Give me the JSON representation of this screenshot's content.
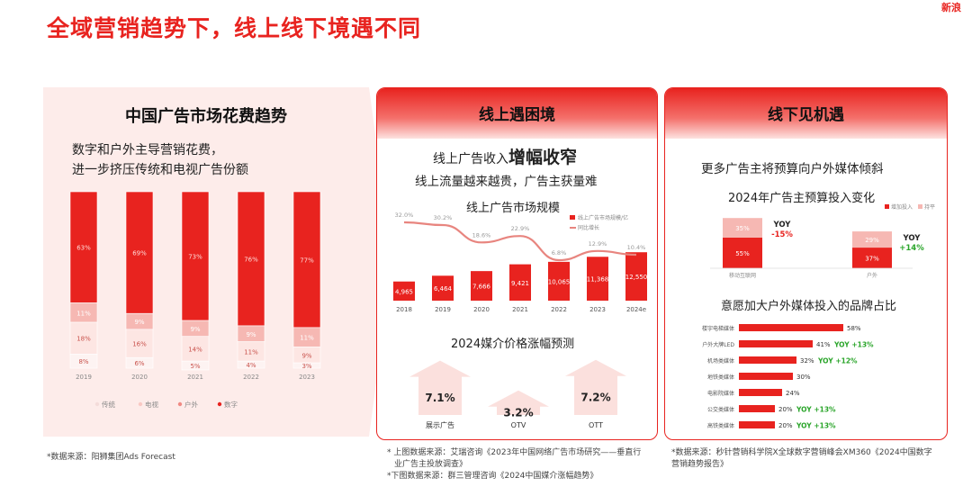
{
  "title": "全域营销趋势下，线上线下境遇不同",
  "brand": "新浪",
  "colors": {
    "red": "#e8231f",
    "pink_light": "#fdecea",
    "pink": "#f6b8b3",
    "pink_mid": "#f9c9c4"
  },
  "left": {
    "title": "中国广告市场花费趋势",
    "subtitle_line1": "数字和户外主导营销花费，",
    "subtitle_line2": "进一步挤压传统和电视广告份额",
    "source": "*数据来源：阳狮集团Ads Forecast"
  },
  "mid": {
    "header": "线上遇困境",
    "headline_prefix": "线上广告收入",
    "headline_emph": "增幅收窄",
    "subline": "线上流量越来越贵，广告主获量难",
    "chart_title": "线上广告市场规模",
    "forecast_title": "2024媒介价格涨幅预测",
    "source_line1": "* 上图数据来源：艾瑞咨询《2023年中国网络广告市场研究——垂直行",
    "source_line2": "业广告主投放调查》",
    "source_line3": "*下图数据来源：群三管理咨询《2024中国媒介涨幅趋势》"
  },
  "right": {
    "header": "线下见机遇",
    "headline": "更多广告主将预算向户外媒体倾斜",
    "budget_title": "2024年广告主预算投入变化",
    "brand_title": "意愿加大户外媒体投入的品牌占比",
    "source_line1": "*数据来源：秒针营销科学院X全球数字营销峰会XM360《2024中国数字",
    "source_line2": "营销趋势报告》"
  },
  "chart_data": [
    {
      "type": "bar",
      "stacked": true,
      "categories": [
        "2019",
        "2020",
        "2021",
        "2022",
        "2023"
      ],
      "series": [
        {
          "name": "数字",
          "values": [
            63,
            69,
            73,
            76,
            77
          ],
          "color": "#e8231f"
        },
        {
          "name": "户外",
          "values": [
            11,
            9,
            9,
            9,
            11
          ],
          "color": "#f6b8b3"
        },
        {
          "name": "电视",
          "values": [
            18,
            16,
            14,
            11,
            9
          ],
          "color": "#fde6e3"
        },
        {
          "name": "传统",
          "values": [
            8,
            6,
            5,
            4,
            3
          ],
          "color": "#fdf3f2"
        }
      ],
      "legend_labels": [
        "传统",
        "电视",
        "户外",
        "数字"
      ],
      "legend_position": "bottom",
      "ylim": [
        0,
        100
      ]
    },
    {
      "type": "bar",
      "title": "线上广告市场规模",
      "categories": [
        "2018",
        "2019",
        "2020",
        "2021",
        "2022",
        "2023",
        "2024e"
      ],
      "series": [
        {
          "name": "线上广告市场规模/亿",
          "values": [
            4965,
            6464,
            7666,
            9421,
            10065,
            11368,
            12550
          ],
          "labels": [
            "4,965",
            "6,464",
            "7,666",
            "9,421",
            "10,065",
            "11,368",
            "12,550"
          ],
          "color": "#e8231f"
        },
        {
          "name": "同比增长",
          "type": "line",
          "values": [
            32.0,
            30.2,
            18.6,
            22.9,
            6.8,
            12.9,
            10.4
          ],
          "labels": [
            "32.0%",
            "30.2%",
            "18.6%",
            "22.9%",
            "6.8%",
            "12.9%",
            "10.4%"
          ],
          "color": "#e8231f"
        }
      ],
      "legend_position": "top-right"
    },
    {
      "type": "bar",
      "title": "2024媒介价格涨幅预测",
      "categories": [
        "展示广告",
        "OTV",
        "OTT"
      ],
      "values": [
        7.1,
        3.2,
        7.2
      ],
      "labels": [
        "7.1%",
        "3.2%",
        "7.2%"
      ]
    },
    {
      "type": "bar",
      "stacked": true,
      "title": "2024年广告主预算投入变化",
      "categories": [
        "移动互联网",
        "户外"
      ],
      "series": [
        {
          "name": "增加投入",
          "values": [
            55,
            37
          ],
          "labels": [
            "55%",
            "37%"
          ],
          "color": "#e8231f"
        },
        {
          "name": "持平",
          "values": [
            35,
            29
          ],
          "labels": [
            "35%",
            "29%"
          ],
          "color": "#f6b8b3"
        }
      ],
      "yoy_labels": [
        "YOY",
        "YOY"
      ],
      "yoy_values": [
        "-15%",
        "+14%"
      ],
      "legend_position": "top-right"
    },
    {
      "type": "bar",
      "orientation": "horizontal",
      "title": "意愿加大户外媒体投入的品牌占比",
      "categories": [
        "楼宇电梯媒体",
        "户外大牌LED",
        "机场类媒体",
        "地铁类媒体",
        "电影院媒体",
        "公交类媒体",
        "高铁类媒体"
      ],
      "values": [
        58,
        41,
        32,
        30,
        24,
        20,
        20
      ],
      "labels": [
        "58%",
        "41%",
        "32%",
        "30%",
        "24%",
        "20%",
        "20%"
      ],
      "annotations": [
        "",
        "YOY +13%",
        "YOY +12%",
        "",
        "",
        "YOY +13%",
        "YOY +13%"
      ]
    }
  ]
}
